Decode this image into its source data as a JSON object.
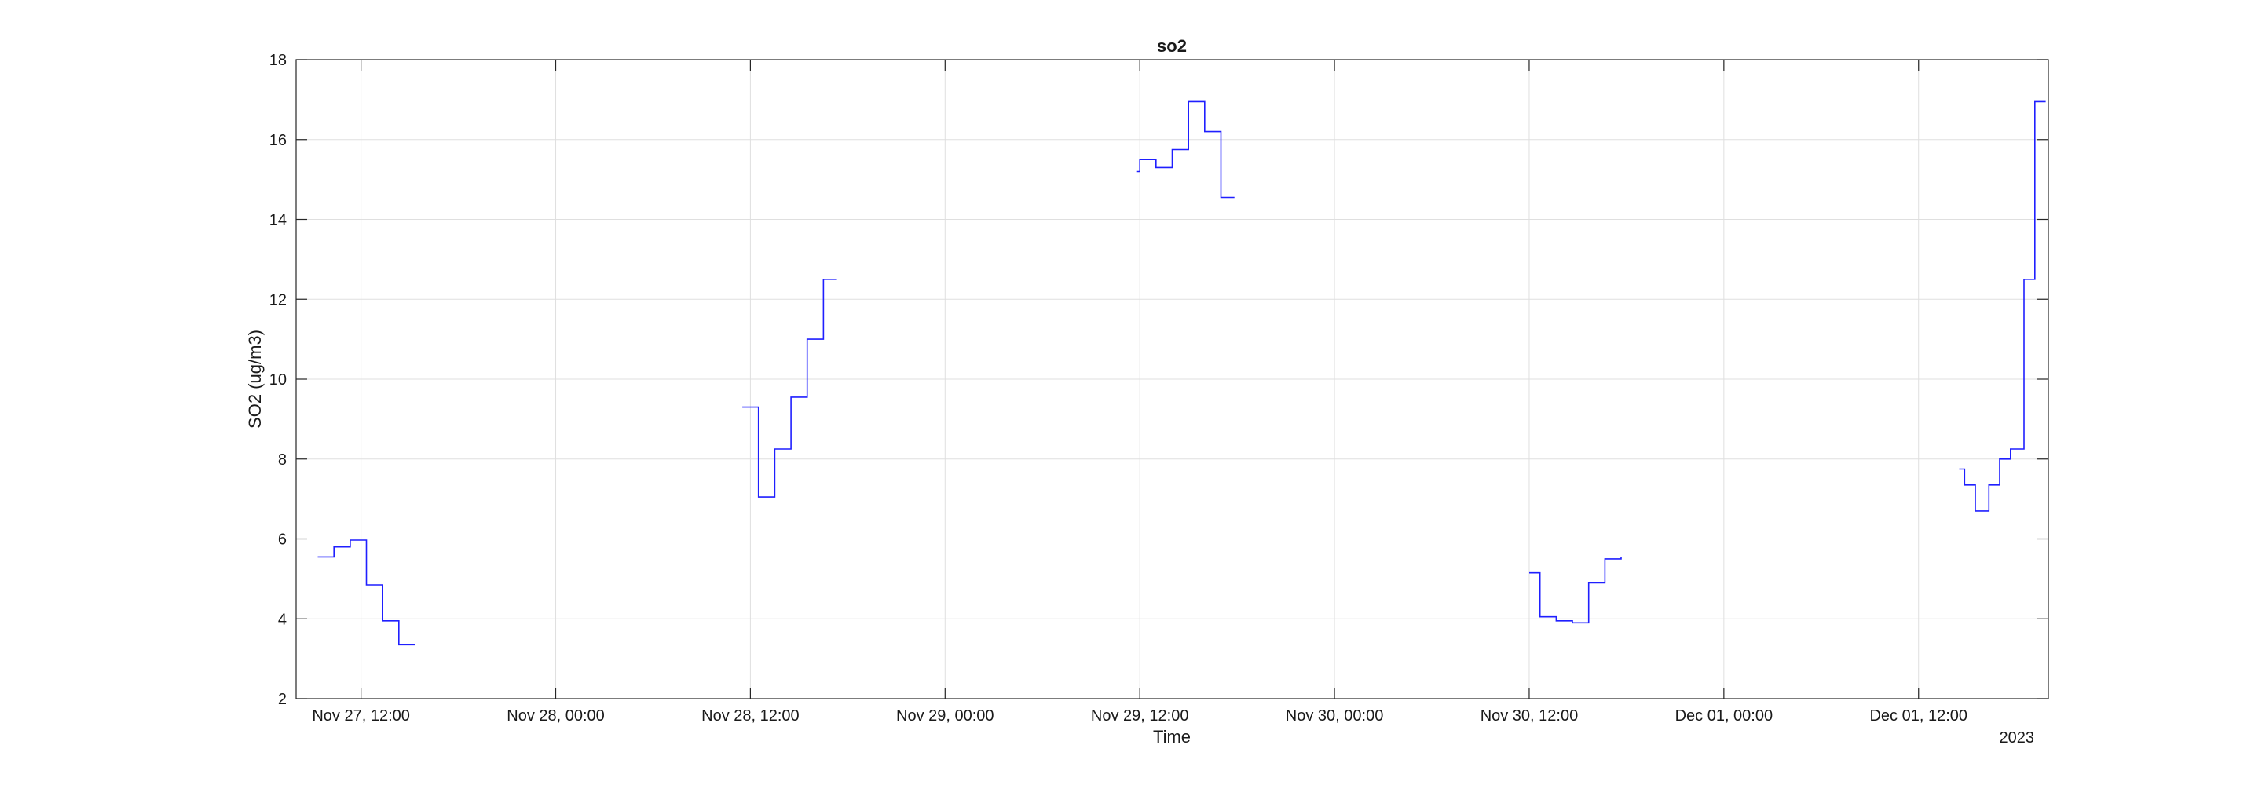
{
  "chart_data": {
    "type": "line",
    "title": "so2",
    "xlabel": "Time",
    "ylabel": "SO2 (ug/m3)",
    "x_axis_year": "2023",
    "xlim": [
      "2023-11-27T08:00",
      "2023-12-01T20:00"
    ],
    "ylim": [
      2,
      18
    ],
    "grid": true,
    "x_ticks": [
      {
        "t": "2023-11-27T12:00",
        "label": "Nov 27, 12:00"
      },
      {
        "t": "2023-11-28T00:00",
        "label": "Nov 28, 00:00"
      },
      {
        "t": "2023-11-28T12:00",
        "label": "Nov 28, 12:00"
      },
      {
        "t": "2023-11-29T00:00",
        "label": "Nov 29, 00:00"
      },
      {
        "t": "2023-11-29T12:00",
        "label": "Nov 29, 12:00"
      },
      {
        "t": "2023-11-30T00:00",
        "label": "Nov 30, 00:00"
      },
      {
        "t": "2023-11-30T12:00",
        "label": "Nov 30, 12:00"
      },
      {
        "t": "2023-12-01T00:00",
        "label": "Dec 01, 00:00"
      },
      {
        "t": "2023-12-01T12:00",
        "label": "Dec 01, 12:00"
      }
    ],
    "y_ticks": [
      2,
      4,
      6,
      8,
      10,
      12,
      14,
      16,
      18
    ],
    "series_color": "#1f1fff",
    "segments": [
      {
        "x": [
          "2023-11-27T09:20",
          "2023-11-27T10:20",
          "2023-11-27T11:20",
          "2023-11-27T12:20",
          "2023-11-27T13:20",
          "2023-11-27T14:20",
          "2023-11-27T15:20"
        ],
        "y": [
          5.55,
          5.8,
          5.97,
          4.85,
          3.95,
          3.35,
          3.35
        ]
      },
      {
        "x": [
          "2023-11-28T11:30",
          "2023-11-28T12:30",
          "2023-11-28T13:30",
          "2023-11-28T14:30",
          "2023-11-28T15:30",
          "2023-11-28T16:30",
          "2023-11-28T17:20"
        ],
        "y": [
          9.3,
          7.05,
          8.25,
          9.55,
          11.0,
          12.5,
          12.5
        ]
      },
      {
        "x": [
          "2023-11-29T11:50",
          "2023-11-29T12:00",
          "2023-11-29T13:00",
          "2023-11-29T14:00",
          "2023-11-29T15:00",
          "2023-11-29T16:00",
          "2023-11-29T17:00",
          "2023-11-29T17:50"
        ],
        "y": [
          15.2,
          15.5,
          15.3,
          15.75,
          16.95,
          16.2,
          14.55,
          14.55
        ]
      },
      {
        "x": [
          "2023-11-30T12:00",
          "2023-11-30T12:40",
          "2023-11-30T13:40",
          "2023-11-30T14:40",
          "2023-11-30T15:40",
          "2023-11-30T16:40",
          "2023-11-30T17:40"
        ],
        "y": [
          5.15,
          4.05,
          3.95,
          3.9,
          4.9,
          5.5,
          5.55
        ]
      },
      {
        "x": [
          "2023-12-01T14:30",
          "2023-12-01T14:50",
          "2023-12-01T15:30",
          "2023-12-01T16:20",
          "2023-12-01T17:00",
          "2023-12-01T17:40",
          "2023-12-01T18:30",
          "2023-12-01T19:10",
          "2023-12-01T19:50"
        ],
        "y": [
          7.75,
          7.35,
          6.7,
          7.35,
          8.0,
          8.25,
          12.5,
          16.95,
          16.95
        ]
      }
    ]
  }
}
